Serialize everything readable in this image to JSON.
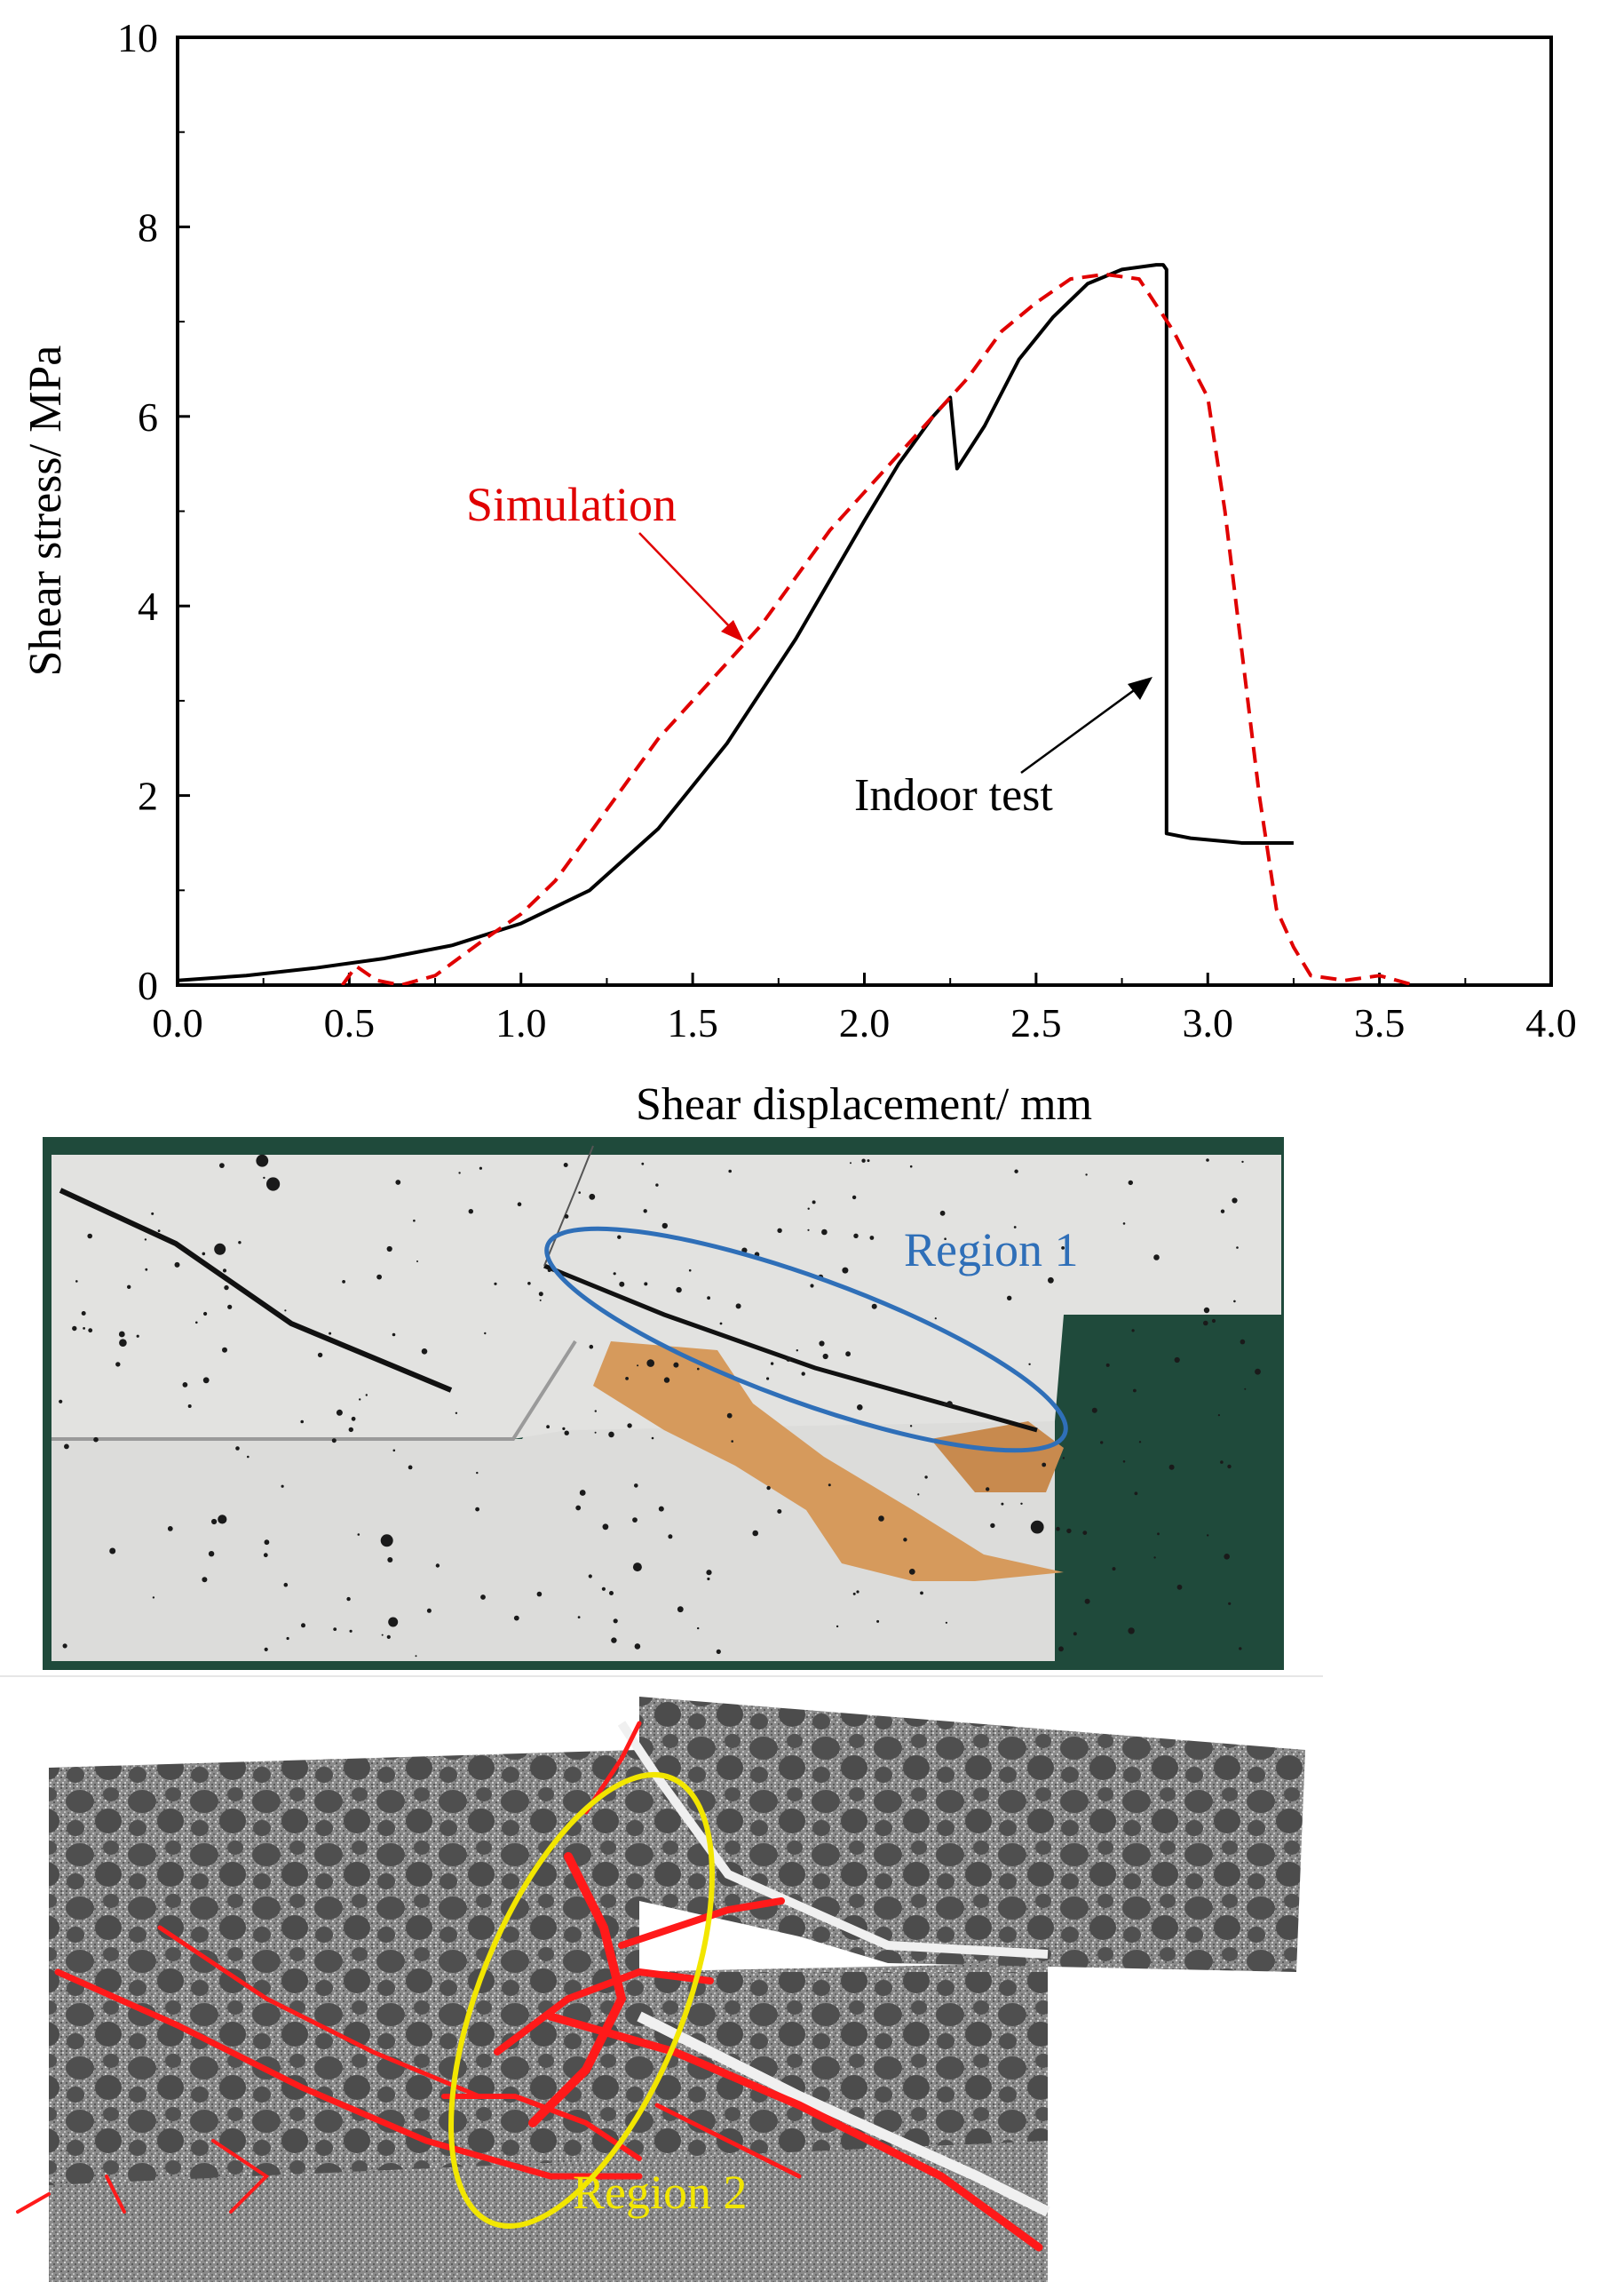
{
  "chart_data": {
    "type": "line",
    "xlabel": "Shear displacement/ mm",
    "ylabel": "Shear stress/ MPa",
    "xlim": [
      0,
      4.0
    ],
    "ylim": [
      0,
      10
    ],
    "x_ticks": [
      "0.0",
      "0.5",
      "1.0",
      "1.5",
      "2.0",
      "2.5",
      "3.0",
      "3.5",
      "4.0"
    ],
    "y_ticks": [
      "0",
      "2",
      "4",
      "6",
      "8",
      "10"
    ],
    "grid": false,
    "legend": "none",
    "annotations": [
      {
        "text": "Simulation",
        "color": "#e00000",
        "points_to_series": "Simulation"
      },
      {
        "text": "Indoor test",
        "color": "#000000",
        "points_to_series": "Indoor test"
      }
    ],
    "series": [
      {
        "name": "Indoor test",
        "color": "#000000",
        "style": "solid",
        "x": [
          0.0,
          0.2,
          0.4,
          0.6,
          0.8,
          1.0,
          1.2,
          1.4,
          1.6,
          1.8,
          2.0,
          2.1,
          2.2,
          2.25,
          2.27,
          2.35,
          2.45,
          2.55,
          2.65,
          2.75,
          2.85,
          2.87,
          2.88,
          2.88,
          2.95,
          3.1,
          3.25
        ],
        "y": [
          0.05,
          0.1,
          0.18,
          0.28,
          0.42,
          0.65,
          1.0,
          1.65,
          2.55,
          3.65,
          4.9,
          5.5,
          6.0,
          6.2,
          5.45,
          5.9,
          6.6,
          7.05,
          7.4,
          7.55,
          7.6,
          7.6,
          7.55,
          1.6,
          1.55,
          1.5,
          1.5
        ]
      },
      {
        "name": "Simulation",
        "color": "#e00000",
        "style": "dashed",
        "x": [
          0.48,
          0.52,
          0.58,
          0.65,
          0.75,
          0.9,
          1.0,
          1.1,
          1.2,
          1.3,
          1.4,
          1.5,
          1.6,
          1.7,
          1.8,
          1.9,
          2.0,
          2.1,
          2.2,
          2.3,
          2.4,
          2.5,
          2.6,
          2.7,
          2.8,
          2.9,
          3.0,
          3.05,
          3.1,
          3.15,
          3.2,
          3.25,
          3.3,
          3.4,
          3.5,
          3.6
        ],
        "y": [
          0.0,
          0.2,
          0.05,
          0.0,
          0.1,
          0.5,
          0.75,
          1.1,
          1.6,
          2.1,
          2.6,
          3.0,
          3.4,
          3.8,
          4.3,
          4.8,
          5.2,
          5.6,
          6.0,
          6.4,
          6.9,
          7.2,
          7.45,
          7.5,
          7.45,
          6.9,
          6.2,
          5.0,
          3.5,
          2.0,
          0.8,
          0.4,
          0.1,
          0.05,
          0.1,
          0.0
        ]
      }
    ]
  },
  "panels": {
    "photo_region_label": "Region 1",
    "photo_region_color": "#2f6fb8",
    "sim_region_label": "Region 2",
    "sim_region_color": "#f2e600",
    "crack_color": "#ff1a1a"
  }
}
